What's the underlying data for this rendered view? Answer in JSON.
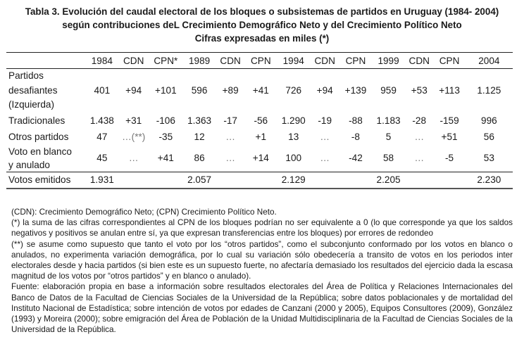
{
  "title": {
    "line1": "Tabla 3. Evolución del caudal electoral de los bloques o subsistemas de partidos en Uruguay (1984- 2004)",
    "line2": "según contribuciones deL Crecimiento Demográfico Neto y del Crecimiento Político Neto",
    "line3": "Cifras expresadas en miles (*)"
  },
  "table": {
    "headers": [
      "",
      "1984",
      "CDN",
      "CPN*",
      "1989",
      "CDN",
      "CPN",
      "1994",
      "CDN",
      "CPN",
      "1999",
      "CDN",
      "CPN",
      "2004"
    ],
    "rows": [
      {
        "label_lines": [
          "Partidos",
          "desafiantes",
          "(Izquierda)"
        ],
        "cells": [
          "401",
          "+94",
          "+101",
          "596",
          "+89",
          "+41",
          "726",
          "+94",
          "+139",
          "959",
          "+53",
          "+113",
          "1.125"
        ]
      },
      {
        "label_lines": [
          "Tradicionales"
        ],
        "cells": [
          "1.438",
          "+31",
          "-106",
          "1.363",
          "-17",
          "-56",
          "1.290",
          "-19",
          "-88",
          "1.183",
          "-28",
          "-159",
          "996"
        ]
      },
      {
        "label_lines": [
          "Otros partidos"
        ],
        "cells": [
          "47",
          "…(**)",
          "-35",
          "12",
          "…",
          "+1",
          "13",
          "…",
          "-8",
          "5",
          "…",
          "+51",
          "56"
        ]
      },
      {
        "label_lines": [
          "Voto en blanco",
          "y anulado"
        ],
        "cells": [
          "45",
          "…",
          "+41",
          "86",
          "…",
          "+14",
          "100",
          "…",
          "-42",
          "58",
          "…",
          "-5",
          "53"
        ]
      }
    ],
    "total": {
      "label": "Votos emitidos",
      "cells": [
        "1.931",
        "",
        "",
        "2.057",
        "",
        "",
        "2.129",
        "",
        "",
        "2.205",
        "",
        "",
        "2.230"
      ]
    }
  },
  "notes": [
    "(CDN): Crecimiento Demográfico Neto; (CPN) Crecimiento Político Neto.",
    "(*) la suma de las cifras correspondientes al CPN de los bloques podrían no ser equivalente a 0 (lo que corresponde ya que los saldos negativos y positivos se anulan entre sí, ya que expresan transferencias entre los bloques) por errores de redondeo",
    "(**) se asume como supuesto que tanto el voto por los “otros partidos”, como el subconjunto conformado por los votos en blanco o anulados, no experimenta variación demográfica, por lo cual su variación sólo obedecería a transito de votos en los periodos  inter electorales desde y hacia partidos (si bien este es un supuesto fuerte, no afectaría demasiado los resultados del ejercicio dada la escasa magnitud de los votos por “otros partidos” y en blanco o anulado).",
    "Fuente: elaboración propia en base a información sobre resultados electorales del Área de Política y Relaciones Internacionales del Banco de Datos de la Facultad de Ciencias Sociales de la Universidad de la República; sobre datos poblacionales y de mortalidad del Instituto Nacional de Estadística; sobre intención de votos por edades de Canzani (2000 y 2005), Equipos Consultores (2009), González (1993) y Moreira (2000); sobre emigración del Área de Población de la Unidad Multidisciplinaria de la Facultad de Ciencias Sociales de la Universidad de la República."
  ]
}
